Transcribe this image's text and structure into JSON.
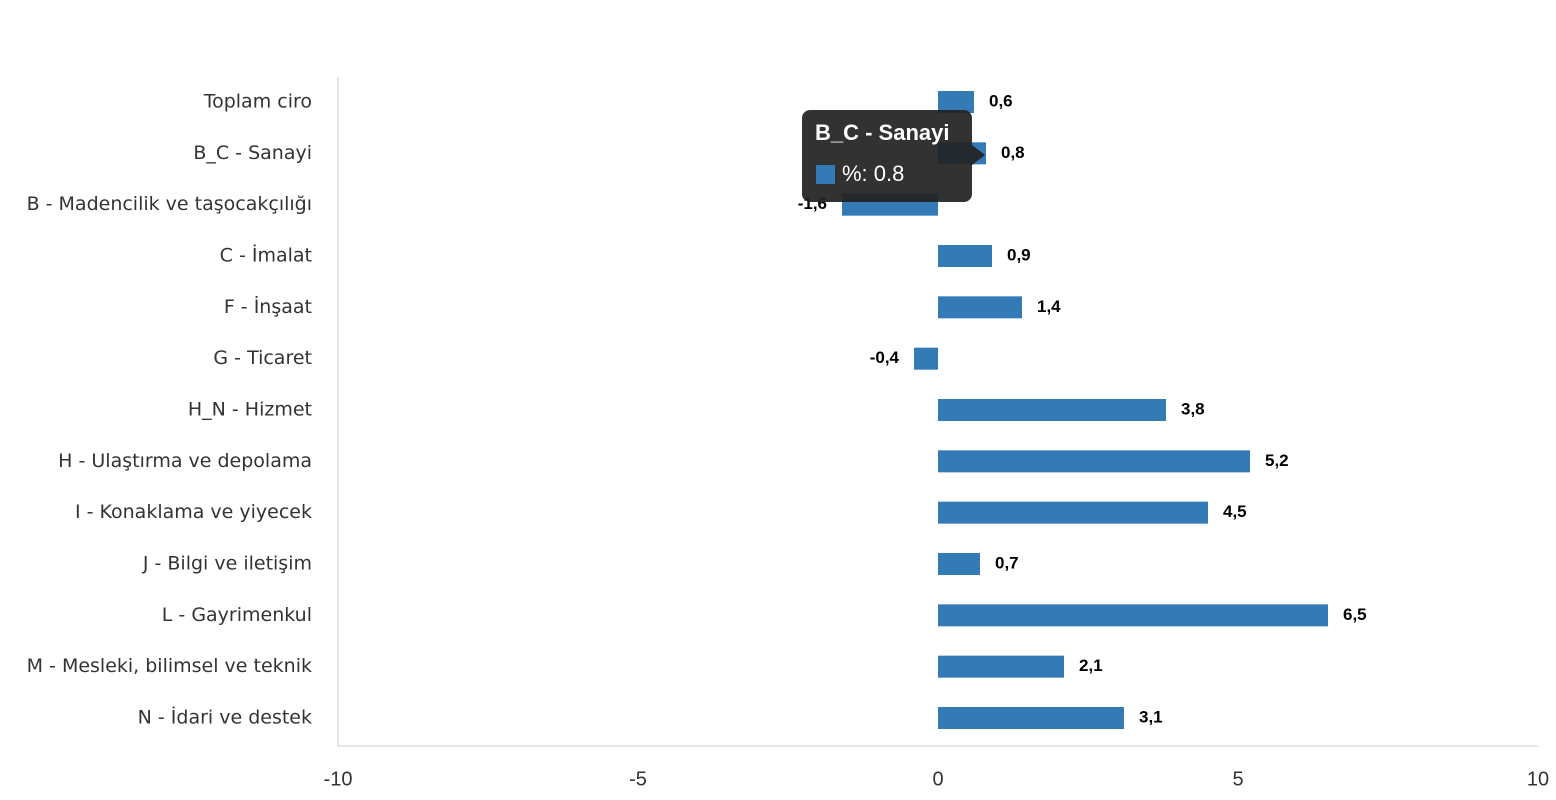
{
  "chart_data": {
    "type": "bar",
    "orientation": "horizontal",
    "categories": [
      "Toplam ciro",
      "B_C - Sanayi",
      "B - Madencilik ve taşocakçılığı",
      "C - İmalat",
      "F - İnşaat",
      "G - Ticaret",
      "H_N - Hizmet",
      "H - Ulaştırma ve depolama",
      "I - Konaklama ve yiyecek",
      "J - Bilgi ve iletişim",
      "L - Gayrimenkul",
      "M - Mesleki, bilimsel ve teknik",
      "N - İdari ve destek"
    ],
    "values": [
      0.6,
      0.8,
      -1.6,
      0.9,
      1.4,
      -0.4,
      3.8,
      5.2,
      4.5,
      0.7,
      6.5,
      2.1,
      3.1
    ],
    "value_labels": [
      "0,6",
      "0,8",
      "-1,6",
      "0,9",
      "1,4",
      "-0,4",
      "3,8",
      "5,2",
      "4,5",
      "0,7",
      "6,5",
      "2,1",
      "3,1"
    ],
    "color": "#337ab7",
    "xlim": [
      -10,
      10
    ],
    "xticks": [
      -10,
      -5,
      0,
      5,
      10
    ],
    "tooltip": {
      "title": "B_C - Sanayi",
      "text": "%: 0.8"
    }
  }
}
